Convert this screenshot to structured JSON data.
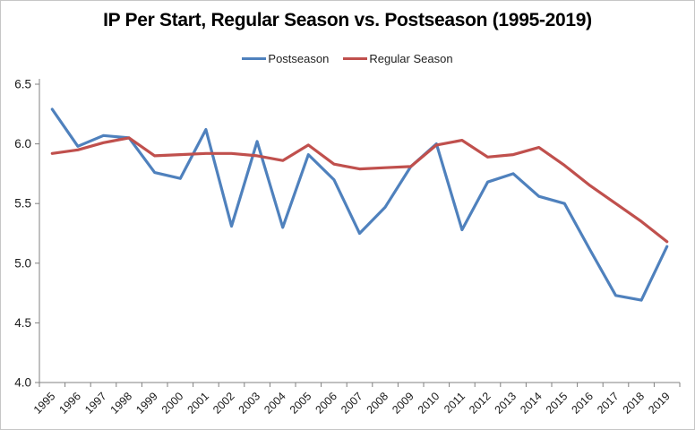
{
  "frame": {
    "background": "#ffffff",
    "border_color": "#c6c6c6"
  },
  "chart_data": {
    "type": "line",
    "title": "IP Per Start, Regular Season vs. Postseason (1995-2019)",
    "categories": [
      "1995",
      "1996",
      "1997",
      "1998",
      "1999",
      "2000",
      "2001",
      "2002",
      "2003",
      "2004",
      "2005",
      "2006",
      "2007",
      "2008",
      "2009",
      "2010",
      "2011",
      "2012",
      "2013",
      "2014",
      "2015",
      "2016",
      "2017",
      "2018",
      "2019"
    ],
    "series": [
      {
        "name": "Postseason",
        "color": "#4F81BD",
        "values": [
          6.29,
          5.98,
          6.07,
          6.05,
          5.76,
          5.71,
          6.12,
          5.31,
          6.02,
          5.3,
          5.91,
          5.7,
          5.25,
          5.47,
          5.81,
          6.0,
          5.28,
          5.68,
          5.75,
          5.56,
          5.5,
          5.11,
          4.73,
          4.69,
          5.14
        ]
      },
      {
        "name": "Regular Season",
        "color": "#C0504D",
        "values": [
          5.92,
          5.95,
          6.01,
          6.05,
          5.9,
          5.91,
          5.92,
          5.92,
          5.9,
          5.86,
          5.99,
          5.83,
          5.79,
          5.8,
          5.81,
          5.99,
          6.03,
          5.89,
          5.91,
          5.97,
          5.82,
          5.65,
          5.5,
          5.35,
          5.18
        ]
      }
    ],
    "ylim": [
      4.0,
      6.5
    ],
    "ytick_step": 0.5,
    "ytick_labels": [
      "6.5",
      "6.0",
      "5.5",
      "5.0",
      "4.5",
      "4.0"
    ],
    "xlabel": "",
    "ylabel": "",
    "grid": false,
    "legend_position": "top-center",
    "x_label_rotation_deg": -45,
    "axis_color": "#808080",
    "tick_label_color": "#1a1a1a",
    "line_width": 3.2
  }
}
